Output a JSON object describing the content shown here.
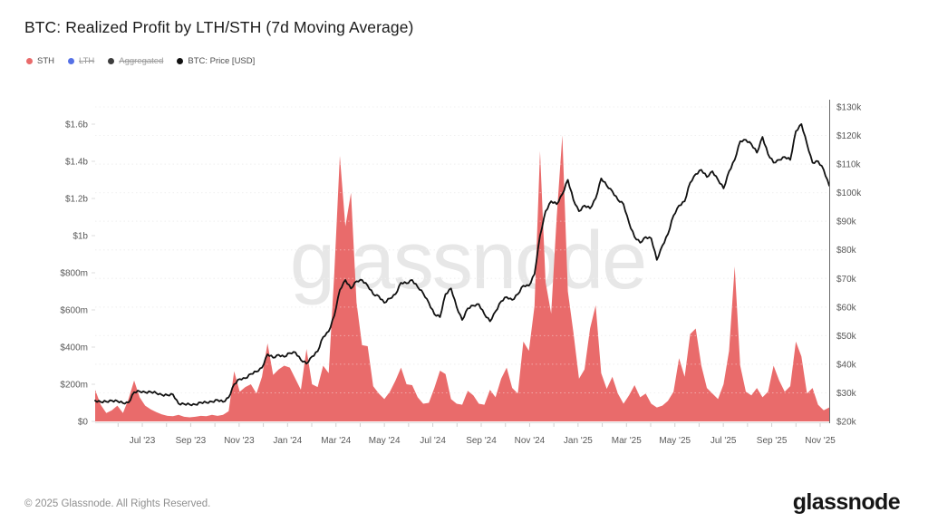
{
  "header": {
    "title": "BTC: Realized Profit by LTH/STH (7d Moving Average)"
  },
  "legend": {
    "items": [
      {
        "label": "STH",
        "color": "#e96b6b",
        "struck": false
      },
      {
        "label": "LTH",
        "color": "#5571e6",
        "struck": true
      },
      {
        "label": "Aggregated",
        "color": "#3d3d3d",
        "struck": true
      },
      {
        "label": "BTC: Price [USD]",
        "color": "#111111",
        "struck": false
      }
    ]
  },
  "watermark": {
    "text": "glassnode",
    "color": "#e7e7e7"
  },
  "footer": {
    "copyright": "© 2025 Glassnode. All Rights Reserved.",
    "brand": "glassnode"
  },
  "chart_data": {
    "type": "area+line",
    "title": "BTC: Realized Profit by LTH/STH (7d Moving Average)",
    "x_start": "2023-05-05",
    "x_end": "2025-11-12",
    "interval": "weekly",
    "x_tick_labels": [
      "Jul '23",
      "Sep '23",
      "Nov '23",
      "Jan '24",
      "Mar '24",
      "May '24",
      "Jul '24",
      "Sep '24",
      "Nov '24",
      "Jan '25",
      "Mar '25",
      "May '25",
      "Jul '25",
      "Sep '25",
      "Nov '25"
    ],
    "left_axis": {
      "unit": "USD",
      "labels": [
        "$0",
        "$200m",
        "$400m",
        "$600m",
        "$800m",
        "$1b",
        "$1.2b",
        "$1.4b",
        "$1.6b"
      ],
      "values_millions": [
        0,
        200,
        400,
        600,
        800,
        1000,
        1200,
        1400,
        1600
      ],
      "max_millions": 1600
    },
    "right_axis": {
      "unit": "USD",
      "labels": [
        "$20k",
        "$30k",
        "$40k",
        "$50k",
        "$60k",
        "$70k",
        "$80k",
        "$90k",
        "$100k",
        "$110k",
        "$120k",
        "$130k"
      ],
      "values_thousands": [
        20,
        30,
        40,
        50,
        60,
        70,
        80,
        90,
        100,
        110,
        120,
        130
      ],
      "min_thousands": 20,
      "max_thousands": 130
    },
    "grid": {
      "horizontal": "dotted",
      "at": "right_axis_ticks"
    },
    "series": [
      {
        "name": "STH",
        "type": "area",
        "axis": "left",
        "unit": "million USD",
        "color": "#e96b6b",
        "values": [
          170,
          90,
          45,
          60,
          85,
          45,
          120,
          220,
          130,
          85,
          65,
          50,
          38,
          30,
          28,
          35,
          25,
          22,
          25,
          30,
          28,
          35,
          30,
          35,
          55,
          270,
          160,
          185,
          200,
          150,
          240,
          420,
          250,
          280,
          300,
          290,
          230,
          170,
          390,
          200,
          185,
          300,
          260,
          800,
          1430,
          1050,
          1230,
          640,
          410,
          405,
          190,
          150,
          120,
          160,
          220,
          290,
          200,
          195,
          130,
          95,
          100,
          180,
          273,
          255,
          120,
          95,
          90,
          165,
          140,
          95,
          90,
          170,
          130,
          230,
          290,
          180,
          150,
          430,
          380,
          620,
          1455,
          750,
          580,
          1100,
          1540,
          700,
          480,
          230,
          280,
          500,
          625,
          260,
          175,
          240,
          150,
          95,
          140,
          195,
          130,
          150,
          95,
          75,
          85,
          110,
          160,
          340,
          240,
          470,
          500,
          300,
          180,
          150,
          120,
          200,
          380,
          834,
          300,
          160,
          140,
          180,
          130,
          160,
          300,
          220,
          160,
          190,
          430,
          350,
          150,
          180,
          90,
          60,
          75
        ]
      },
      {
        "name": "BTC: Price [USD]",
        "type": "line",
        "axis": "right",
        "unit": "thousand USD",
        "color": "#111111",
        "values": [
          27.3,
          26.8,
          26.9,
          27.3,
          27.1,
          26.4,
          26.6,
          30.2,
          30.5,
          30.2,
          30.3,
          29.9,
          29.3,
          29.2,
          29.4,
          26.2,
          26.1,
          25.9,
          25.9,
          26.6,
          26.6,
          26.9,
          27.5,
          26.8,
          28.4,
          33.0,
          34.8,
          35.1,
          36.6,
          37.4,
          38.8,
          43.5,
          42.3,
          43.3,
          42.6,
          43.9,
          44.2,
          41.5,
          40.2,
          42.7,
          44.5,
          49.5,
          51.5,
          57.0,
          66.0,
          69.5,
          66.5,
          69.0,
          69.5,
          67.5,
          64.5,
          63.8,
          61.5,
          63.0,
          64.5,
          68.5,
          68.3,
          69.5,
          67.0,
          64.8,
          61.5,
          57.5,
          56.5,
          64.5,
          66.5,
          60.0,
          55.5,
          59.5,
          60.5,
          61.0,
          57.5,
          55.0,
          58.5,
          62.0,
          63.5,
          62.5,
          64.5,
          67.5,
          67.5,
          71.5,
          85.0,
          93.5,
          97.0,
          96.0,
          99.5,
          104.5,
          97.5,
          93.5,
          95.5,
          94.5,
          98.0,
          105.0,
          102.5,
          100.5,
          97.5,
          96.0,
          89.5,
          84.5,
          82.5,
          84.5,
          84.0,
          76.5,
          81.5,
          85.5,
          92.0,
          95.5,
          97.0,
          103.5,
          106.5,
          108.0,
          105.5,
          107.5,
          104.5,
          101.5,
          107.5,
          111.5,
          118.0,
          118.5,
          117.0,
          114.0,
          119.5,
          113.5,
          110.5,
          111.5,
          112.5,
          111.5,
          121.5,
          124.0,
          117.0,
          110.5,
          111.0,
          108.0,
          102.5
        ]
      }
    ]
  }
}
